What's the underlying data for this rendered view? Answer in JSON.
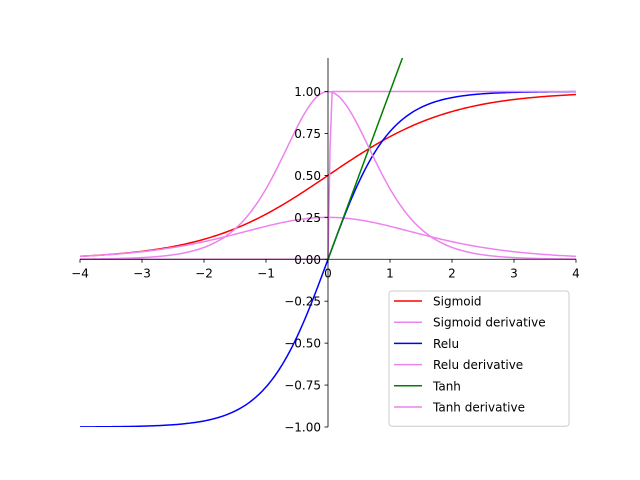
{
  "chart_data": {
    "type": "line",
    "title": "",
    "xlabel": "",
    "ylabel": "",
    "xlim": [
      -4,
      4
    ],
    "ylim": [
      -1,
      1.2
    ],
    "grid": false,
    "axes_style": "spines through origin (left spine at x=0, bottom spine at y=0)",
    "legend_position": "lower-right",
    "x_ticks": [
      -4,
      -3,
      -2,
      -1,
      0,
      1,
      2,
      3,
      4
    ],
    "x_tick_labels": [
      "−4",
      "−3",
      "−2",
      "−1",
      "0",
      "1",
      "2",
      "3",
      "4"
    ],
    "y_ticks": [
      -1.0,
      -0.75,
      -0.5,
      -0.25,
      0.0,
      0.25,
      0.5,
      0.75,
      1.0
    ],
    "y_tick_labels": [
      "−1.00",
      "−0.75",
      "−0.50",
      "−0.25",
      "0.00",
      "0.25",
      "0.50",
      "0.75",
      "1.00"
    ],
    "series": [
      {
        "name": "Sigmoid",
        "color": "#ff0000",
        "x": [
          -4,
          -3,
          -2,
          -1,
          0,
          1,
          2,
          3,
          4
        ],
        "y": [
          0.018,
          0.047,
          0.119,
          0.269,
          0.5,
          0.731,
          0.881,
          0.953,
          0.982
        ]
      },
      {
        "name": "Sigmoid derivative",
        "color": "#ee82ee",
        "x": [
          -4,
          -3,
          -2,
          -1,
          0,
          1,
          2,
          3,
          4
        ],
        "y": [
          0.018,
          0.045,
          0.105,
          0.197,
          0.25,
          0.197,
          0.105,
          0.045,
          0.018
        ]
      },
      {
        "name": "Relu",
        "color": "#0000ff",
        "x": [
          -4,
          -3,
          -2,
          -1,
          -0.5,
          0,
          0.25,
          0.5,
          1,
          1.5,
          2,
          3,
          4
        ],
        "y": [
          -0.999,
          -0.995,
          -0.964,
          -0.762,
          -0.462,
          0.0,
          0.245,
          0.462,
          0.762,
          0.905,
          0.964,
          0.995,
          0.999
        ]
      },
      {
        "name": "Relu derivative",
        "color": "#ee82ee",
        "x": [
          -4,
          0,
          0.05,
          4
        ],
        "y": [
          0.0,
          0.0,
          1.0,
          1.0
        ]
      },
      {
        "name": "Tanh",
        "color": "#008000",
        "x": [
          0,
          1.2
        ],
        "y": [
          0.0,
          1.2
        ]
      },
      {
        "name": "Tanh derivative",
        "color": "#ee82ee",
        "x": [
          -4,
          -3,
          -2,
          -1.5,
          -1,
          -0.5,
          0,
          0.5,
          1,
          1.5,
          2,
          3,
          4
        ],
        "y": [
          0.0013,
          0.0099,
          0.0707,
          0.181,
          0.42,
          0.786,
          1.0,
          0.786,
          0.42,
          0.181,
          0.0707,
          0.0099,
          0.0013
        ]
      }
    ]
  }
}
